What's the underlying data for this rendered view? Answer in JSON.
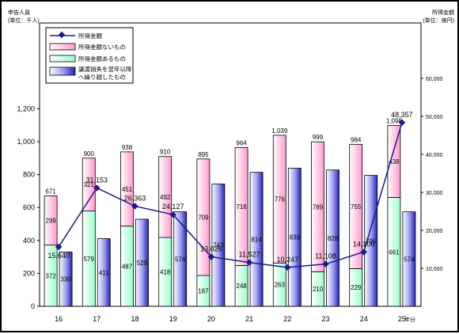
{
  "chart_data": {
    "type": "bar",
    "left_axis_title": "申告人員",
    "left_axis_unit": "(単位：千人)",
    "right_axis_title": "所得金額",
    "right_axis_unit": "(単位：億円)",
    "x_axis_unit": "年分",
    "categories": [
      "16",
      "17",
      "18",
      "19",
      "20",
      "21",
      "22",
      "23",
      "24",
      "25"
    ],
    "ylim_left": [
      0,
      1200
    ],
    "yticks_left": [
      "0",
      "200",
      "400",
      "600",
      "800",
      "1,000",
      "1,200"
    ],
    "ylim_right": [
      0,
      60000
    ],
    "yticks_right": [
      "10,000",
      "20,000",
      "30,000",
      "40,000",
      "50,000",
      "60,000"
    ],
    "totals": [
      671,
      900,
      938,
      910,
      895,
      964,
      1039,
      999,
      984,
      1098
    ],
    "total_labels": [
      "671",
      "900",
      "938",
      "910",
      "895",
      "964",
      "1,039",
      "999",
      "984",
      "1,098"
    ],
    "series": [
      {
        "name": "所得金額",
        "kind": "line",
        "axis": "right",
        "color": "#1a1a8c",
        "values": [
          15640,
          31153,
          26363,
          24127,
          13026,
          11527,
          10247,
          11108,
          14306,
          48357
        ],
        "labels": [
          "15,640",
          "31,153",
          "26,363",
          "24,127",
          "13,026",
          "11,527",
          "10,247",
          "11,108",
          "14,306",
          "48,357"
        ]
      },
      {
        "name": "所得金額ないもの",
        "kind": "stacked-bar-top",
        "axis": "left",
        "color": "#ff99cc",
        "values": [
          299,
          321,
          451,
          492,
          709,
          716,
          776,
          789,
          755,
          438
        ]
      },
      {
        "name": "所得金額あるもの",
        "kind": "stacked-bar-bottom",
        "axis": "left",
        "color": "#99ffcc",
        "values": [
          372,
          579,
          487,
          418,
          187,
          248,
          263,
          210,
          229,
          661
        ]
      },
      {
        "name": "譲渡損失を翌年以降へ繰り越したもの",
        "name_lines": [
          "譲渡損失を翌年以降",
          "へ繰り越したもの"
        ],
        "kind": "bar",
        "axis": "left",
        "color": "#3333cc",
        "values": [
          330,
          411,
          529,
          574,
          743,
          814,
          839,
          828,
          795,
          574
        ]
      }
    ]
  }
}
